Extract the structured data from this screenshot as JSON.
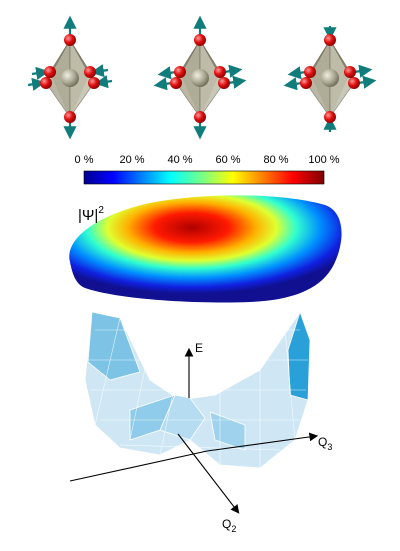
{
  "colorbar": {
    "ticks": [
      "0 %",
      "20 %",
      "40 %",
      "60 %",
      "80 %",
      "100 %"
    ]
  },
  "density_label": {
    "base": "|Ψ|",
    "sup": "2"
  },
  "axes": {
    "energy": "E",
    "q3": {
      "base": "Q",
      "sub": "3"
    },
    "q2": {
      "base": "Q",
      "sub": "2"
    }
  }
}
